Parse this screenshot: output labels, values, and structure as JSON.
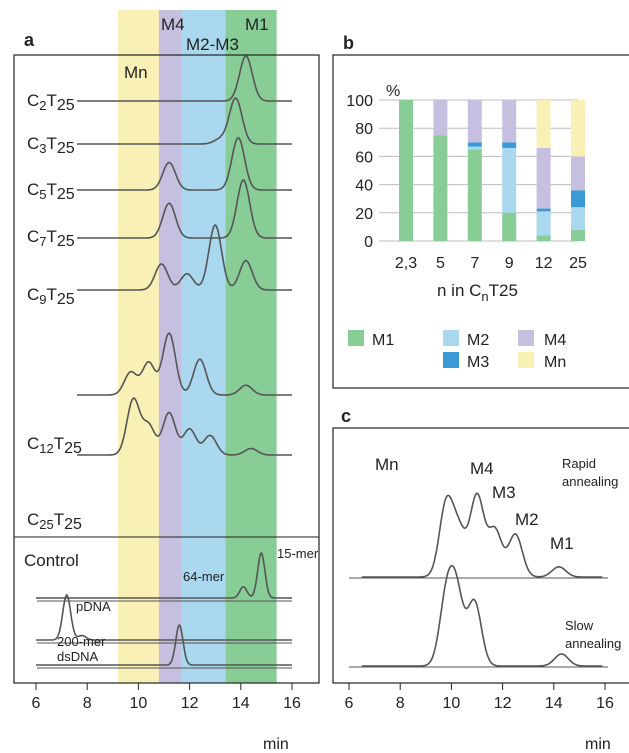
{
  "panel_a": {
    "letter": "a",
    "band_labels": {
      "mn": "Mn",
      "m4": "M4",
      "m23": "M2-M3",
      "m1": "M1"
    },
    "colors": {
      "mn": "#f9f0b5",
      "m4": "#c7bfe0",
      "m23": "#a9d8ef",
      "m1": "#88cc96",
      "trace": "#555555"
    },
    "control_label": "Control",
    "control_notes": {
      "n64": "64-mer",
      "n15": "15-mer",
      "pdna": "pDNA",
      "d200a": "200-mer",
      "d200b": "dsDNA"
    },
    "xticks": [
      "6",
      "8",
      "10",
      "12",
      "14",
      "16"
    ],
    "xunit": "min"
  },
  "panel_b": {
    "letter": "b",
    "ylabel": "%",
    "yticks": [
      "0",
      "20",
      "40",
      "60",
      "80",
      "100"
    ],
    "xlabel": "n in CnT25",
    "legend": {
      "m1": "M1",
      "m2": "M2",
      "m3": "M3",
      "m4": "M4",
      "mn": "Mn"
    }
  },
  "panel_c": {
    "letter": "c",
    "labels_top": {
      "mn": "Mn",
      "m4": "M4",
      "m3": "M3",
      "m2": "M2",
      "m1": "M1"
    },
    "rapid_1": "Rapid",
    "rapid_2": "annealing",
    "slow_1": "Slow",
    "slow_2": "annealing",
    "xticks": [
      "6",
      "8",
      "10",
      "12",
      "14",
      "16"
    ],
    "xunit": "min"
  },
  "chart_data": [
    {
      "type": "line",
      "panel": "a",
      "x_unit": "min",
      "xlim": [
        6,
        16
      ],
      "bands": [
        {
          "name": "Mn",
          "range": [
            9.2,
            10.8
          ],
          "color": "#f9f0b5"
        },
        {
          "name": "M4",
          "range": [
            10.8,
            11.7
          ],
          "color": "#c7bfe0"
        },
        {
          "name": "M2-M3",
          "range": [
            11.7,
            13.4
          ],
          "color": "#a9d8ef"
        },
        {
          "name": "M1",
          "range": [
            13.4,
            15.4
          ],
          "color": "#88cc96"
        }
      ],
      "series": [
        {
          "name": "C2T25",
          "label": {
            "c": "C",
            "n": "2",
            "t": "T",
            "s": "25"
          },
          "peaks": [
            [
              14.2,
              1.0
            ]
          ]
        },
        {
          "name": "C3T25",
          "label": {
            "c": "C",
            "n": "3",
            "t": "T",
            "s": "25"
          },
          "peaks": [
            [
              13.8,
              0.95
            ],
            [
              13.2,
              0.1
            ]
          ]
        },
        {
          "name": "C5T25",
          "label": {
            "c": "C",
            "n": "5",
            "t": "T",
            "s": "25"
          },
          "peaks": [
            [
              11.2,
              0.5
            ],
            [
              13.9,
              0.95
            ]
          ]
        },
        {
          "name": "C7T25",
          "label": {
            "c": "C",
            "n": "7",
            "t": "T",
            "s": "25"
          },
          "peaks": [
            [
              11.2,
              0.6
            ],
            [
              14.1,
              1.0
            ]
          ]
        },
        {
          "name": "C9T25",
          "label": {
            "c": "C",
            "n": "9",
            "t": "T",
            "s": "25"
          },
          "peaks": [
            [
              10.9,
              0.4
            ],
            [
              11.9,
              0.25
            ],
            [
              13.0,
              1.0
            ],
            [
              14.2,
              0.45
            ]
          ]
        },
        {
          "name": "C12T25",
          "label": {
            "c": "C",
            "n": "12",
            "t": "T",
            "s": "25"
          },
          "peaks": [
            [
              9.7,
              0.35
            ],
            [
              10.4,
              0.5
            ],
            [
              11.2,
              0.95
            ],
            [
              12.4,
              0.55
            ],
            [
              14.2,
              0.15
            ]
          ]
        },
        {
          "name": "C25T25",
          "label": {
            "c": "C",
            "n": "25",
            "t": "T",
            "s": "25"
          },
          "peaks": [
            [
              9.8,
              0.85
            ],
            [
              10.4,
              0.45
            ],
            [
              11.2,
              0.65
            ],
            [
              12.0,
              0.4
            ],
            [
              12.8,
              0.3
            ],
            [
              14.4,
              0.1
            ]
          ]
        }
      ],
      "controls": [
        {
          "name": "64-mer / 15-mer",
          "peaks": [
            [
              14.1,
              0.25
            ],
            [
              14.8,
              1.0
            ]
          ]
        },
        {
          "name": "pDNA",
          "peaks": [
            [
              7.2,
              1.0
            ],
            [
              7.8,
              0.1
            ]
          ]
        },
        {
          "name": "200-mer dsDNA",
          "peaks": [
            [
              11.6,
              1.0
            ]
          ]
        }
      ]
    },
    {
      "type": "bar",
      "panel": "b",
      "stacked": true,
      "categories": [
        "2,3",
        "5",
        "7",
        "9",
        "12",
        "25"
      ],
      "ylim": [
        0,
        100
      ],
      "ylabel": "%",
      "xlabel": "n in CnT25",
      "grid": true,
      "legend_position": "bottom",
      "series": [
        {
          "name": "M1",
          "color": "#88cc96",
          "values": [
            100,
            75,
            65,
            20,
            4,
            8
          ]
        },
        {
          "name": "M2",
          "color": "#a9d8ef",
          "values": [
            0,
            0,
            2,
            46,
            17,
            16
          ]
        },
        {
          "name": "M3",
          "color": "#3a9ad6",
          "values": [
            0,
            0,
            3,
            4,
            2,
            12
          ]
        },
        {
          "name": "M4",
          "color": "#c7bfe0",
          "values": [
            0,
            25,
            30,
            30,
            43,
            24
          ]
        },
        {
          "name": "Mn",
          "color": "#f9f0b5",
          "values": [
            0,
            0,
            0,
            0,
            34,
            40
          ]
        }
      ]
    },
    {
      "type": "line",
      "panel": "c",
      "x_unit": "min",
      "xlim": [
        6,
        16
      ],
      "series": [
        {
          "name": "Rapid annealing",
          "peaks": [
            [
              9.8,
              0.85
            ],
            [
              10.3,
              0.5
            ],
            [
              11.0,
              0.95
            ],
            [
              11.7,
              0.55
            ],
            [
              12.5,
              0.5
            ],
            [
              14.2,
              0.12
            ]
          ]
        },
        {
          "name": "Slow annealing",
          "peaks": [
            [
              9.8,
              0.8
            ],
            [
              10.2,
              0.85
            ],
            [
              10.9,
              0.8
            ],
            [
              14.3,
              0.15
            ]
          ]
        }
      ]
    }
  ]
}
